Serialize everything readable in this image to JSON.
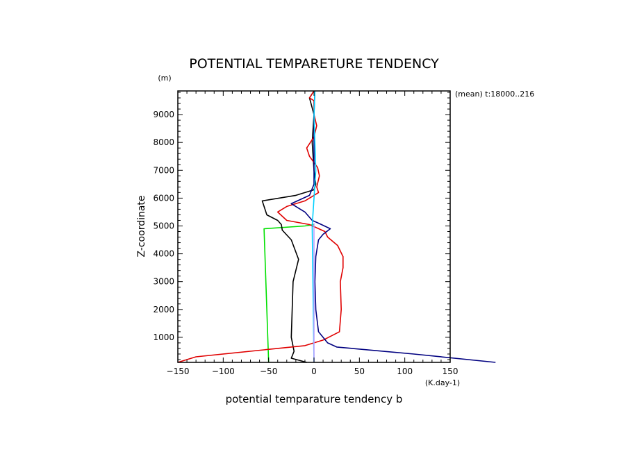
{
  "chart_data": {
    "type": "line",
    "title": "POTENTIAL TEMPARETURE TENDENCY",
    "y_unit": "(m)",
    "x_unit": "(K.day-1)",
    "annotation": "(mean) t:18000..216",
    "xlabel": "potential temparature tendency b",
    "ylabel": "Z-coordinate",
    "xlim": [
      -150,
      150
    ],
    "ylim": [
      100,
      9850
    ],
    "x_ticks": [
      -150,
      -100,
      -50,
      0,
      50,
      100,
      150
    ],
    "x_tick_labels": [
      "−150",
      "−100",
      "−50",
      "0",
      "50",
      "100",
      "150"
    ],
    "y_ticks": [
      1000,
      2000,
      3000,
      4000,
      5000,
      6000,
      7000,
      8000,
      9000
    ],
    "y_tick_labels": [
      "1000",
      "2000",
      "3000",
      "4000",
      "5000",
      "6000",
      "7000",
      "8000",
      "9000"
    ],
    "grid": false,
    "legend": "none",
    "series": [
      {
        "color": "#00e000",
        "points": [
          [
            -50,
            100
          ],
          [
            -55,
            4900
          ],
          [
            -10,
            5000
          ],
          [
            0,
            5050
          ]
        ]
      },
      {
        "color": "#000000",
        "points": [
          [
            -8,
            100
          ],
          [
            -25,
            250
          ],
          [
            -22,
            500
          ],
          [
            -25,
            1000
          ],
          [
            -24,
            2000
          ],
          [
            -23,
            3000
          ],
          [
            -17,
            3800
          ],
          [
            -25,
            4500
          ],
          [
            -35,
            4850
          ],
          [
            -36,
            5050
          ],
          [
            -40,
            5200
          ],
          [
            -52,
            5400
          ],
          [
            -57,
            5900
          ],
          [
            -20,
            6100
          ],
          [
            0,
            6300
          ],
          [
            2,
            6500
          ],
          [
            0,
            7000
          ],
          [
            -2,
            8000
          ],
          [
            0,
            9000
          ],
          [
            -5,
            9600
          ],
          [
            0,
            9850
          ]
        ]
      },
      {
        "color": "#e00000",
        "points": [
          [
            -150,
            100
          ],
          [
            -130,
            300
          ],
          [
            -10,
            700
          ],
          [
            10,
            900
          ],
          [
            28,
            1200
          ],
          [
            30,
            2000
          ],
          [
            29,
            3000
          ],
          [
            32,
            3500
          ],
          [
            32,
            3900
          ],
          [
            26,
            4300
          ],
          [
            15,
            4600
          ],
          [
            12,
            4800
          ],
          [
            -5,
            5050
          ],
          [
            -30,
            5200
          ],
          [
            -40,
            5500
          ],
          [
            -30,
            5700
          ],
          [
            -10,
            5900
          ],
          [
            5,
            6200
          ],
          [
            3,
            6400
          ],
          [
            6,
            6800
          ],
          [
            4,
            7100
          ],
          [
            -5,
            7500
          ],
          [
            -8,
            7800
          ],
          [
            0,
            8200
          ],
          [
            3,
            8600
          ],
          [
            0,
            9000
          ],
          [
            0,
            9500
          ],
          [
            -5,
            9600
          ],
          [
            0,
            9850
          ]
        ]
      },
      {
        "color": "#000080",
        "points": [
          [
            200,
            100
          ],
          [
            110,
            400
          ],
          [
            25,
            650
          ],
          [
            15,
            800
          ],
          [
            5,
            1200
          ],
          [
            2,
            2000
          ],
          [
            1,
            3000
          ],
          [
            2,
            3900
          ],
          [
            5,
            4500
          ],
          [
            10,
            4700
          ],
          [
            18,
            4900
          ],
          [
            5,
            5100
          ],
          [
            -2,
            5200
          ],
          [
            -10,
            5500
          ],
          [
            -25,
            5800
          ],
          [
            -5,
            6100
          ],
          [
            0,
            6500
          ],
          [
            0,
            7000
          ],
          [
            0,
            8000
          ],
          [
            0,
            9000
          ],
          [
            1,
            9850
          ]
        ]
      },
      {
        "color": "#00d0ff",
        "points": [
          [
            0,
            100
          ],
          [
            -2,
            5000
          ],
          [
            0,
            6000
          ],
          [
            2,
            7000
          ],
          [
            1,
            8000
          ],
          [
            0,
            9000
          ],
          [
            1,
            9850
          ]
        ]
      },
      {
        "color": "#c0a0ff",
        "points": [
          [
            0,
            100
          ],
          [
            0,
            4800
          ],
          [
            0,
            5100
          ]
        ]
      }
    ]
  }
}
